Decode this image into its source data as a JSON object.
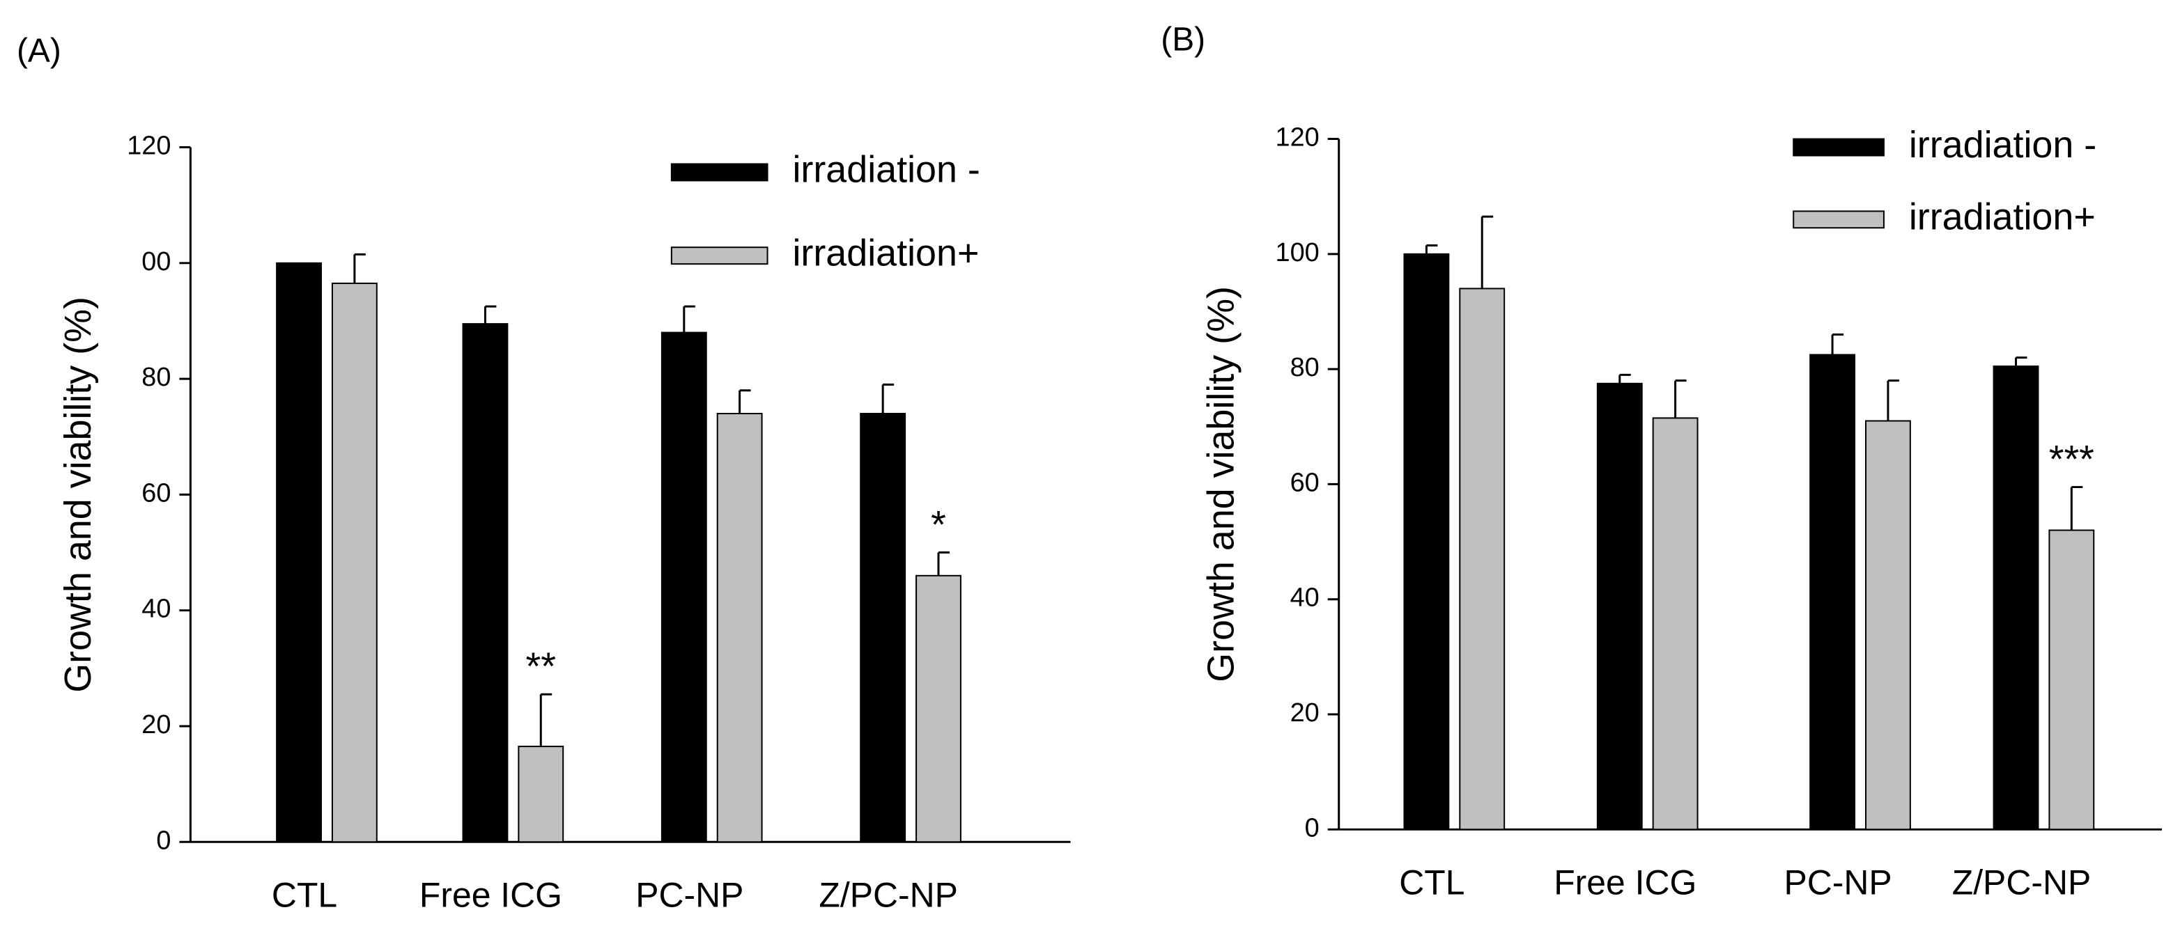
{
  "chart_data": [
    {
      "type": "bar",
      "panel_label": "(A)",
      "y_label": "Growth and viability (%)",
      "categories": [
        "CTL",
        "Free ICG",
        "PC-NP",
        "Z/PC-NP"
      ],
      "series": [
        {
          "name": "irradiation -",
          "color": "#000000",
          "values": [
            100,
            89.5,
            88,
            74
          ],
          "errors": [
            0,
            3,
            4.5,
            5
          ]
        },
        {
          "name": "irradiation+",
          "color": "#c0c0c0",
          "values": [
            96.5,
            16.5,
            74,
            46
          ],
          "errors": [
            5,
            9,
            4,
            4
          ]
        }
      ],
      "annotations": [
        {
          "text": "**",
          "category": "Free ICG",
          "series": "irradiation+"
        },
        {
          "text": "*",
          "category": "Z/PC-NP",
          "series": "irradiation+"
        }
      ],
      "ylim": [
        0,
        120
      ],
      "yticks": [
        0,
        20,
        40,
        60,
        80,
        {
          "value": 100,
          "label": "00"
        },
        120
      ]
    },
    {
      "type": "bar",
      "panel_label": "(B)",
      "y_label": "Growth and viability (%)",
      "categories": [
        "CTL",
        "Free ICG",
        "PC-NP",
        "Z/PC-NP"
      ],
      "series": [
        {
          "name": "irradiation -",
          "color": "#000000",
          "values": [
            100,
            77.5,
            82.5,
            80.5
          ],
          "errors": [
            1.5,
            1.5,
            3.5,
            1.5
          ]
        },
        {
          "name": "irradiation+",
          "color": "#c0c0c0",
          "values": [
            94,
            71.5,
            71,
            52
          ],
          "errors": [
            12.5,
            6.5,
            7,
            7.5
          ]
        }
      ],
      "annotations": [
        {
          "text": "***",
          "category": "Z/PC-NP",
          "series": "irradiation+"
        }
      ],
      "ylim": [
        0,
        120
      ],
      "yticks": [
        0,
        20,
        40,
        60,
        80,
        100,
        120
      ]
    }
  ]
}
